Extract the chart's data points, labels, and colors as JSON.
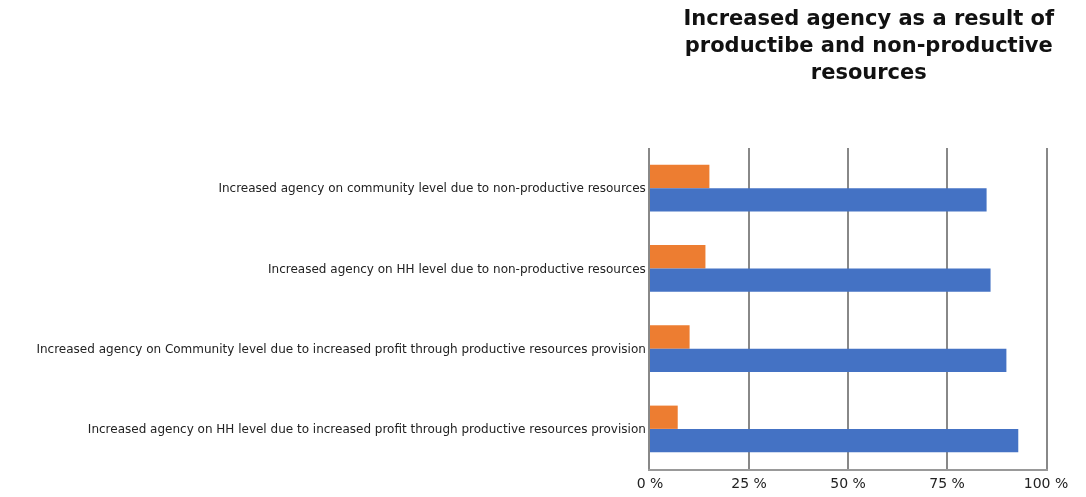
{
  "chart_data": {
    "type": "bar",
    "orientation": "horizontal",
    "title": "Increased agency as a result of productibe and non-productive resources",
    "categories": [
      "Increased agency on community level due to non-productive resources",
      "Increased agency on HH level due to non-productive resources",
      "Increased agency on Community level due to increased profit through productive resources provision",
      "Increased agency on HH level due to increased profit through productive resources provision"
    ],
    "series": [
      {
        "color": "#ed7d31",
        "values": [
          15,
          14,
          10,
          7
        ]
      },
      {
        "color": "#4472c4",
        "values": [
          85,
          86,
          90,
          93
        ]
      }
    ],
    "xlim": [
      0,
      100
    ],
    "xticks": [
      {
        "value": 0,
        "label": "0 %"
      },
      {
        "value": 25,
        "label": "25 %"
      },
      {
        "value": 50,
        "label": "50 %"
      },
      {
        "value": 75,
        "label": "75 %"
      },
      {
        "value": 100,
        "label": "100 %"
      }
    ],
    "grid": "x"
  }
}
